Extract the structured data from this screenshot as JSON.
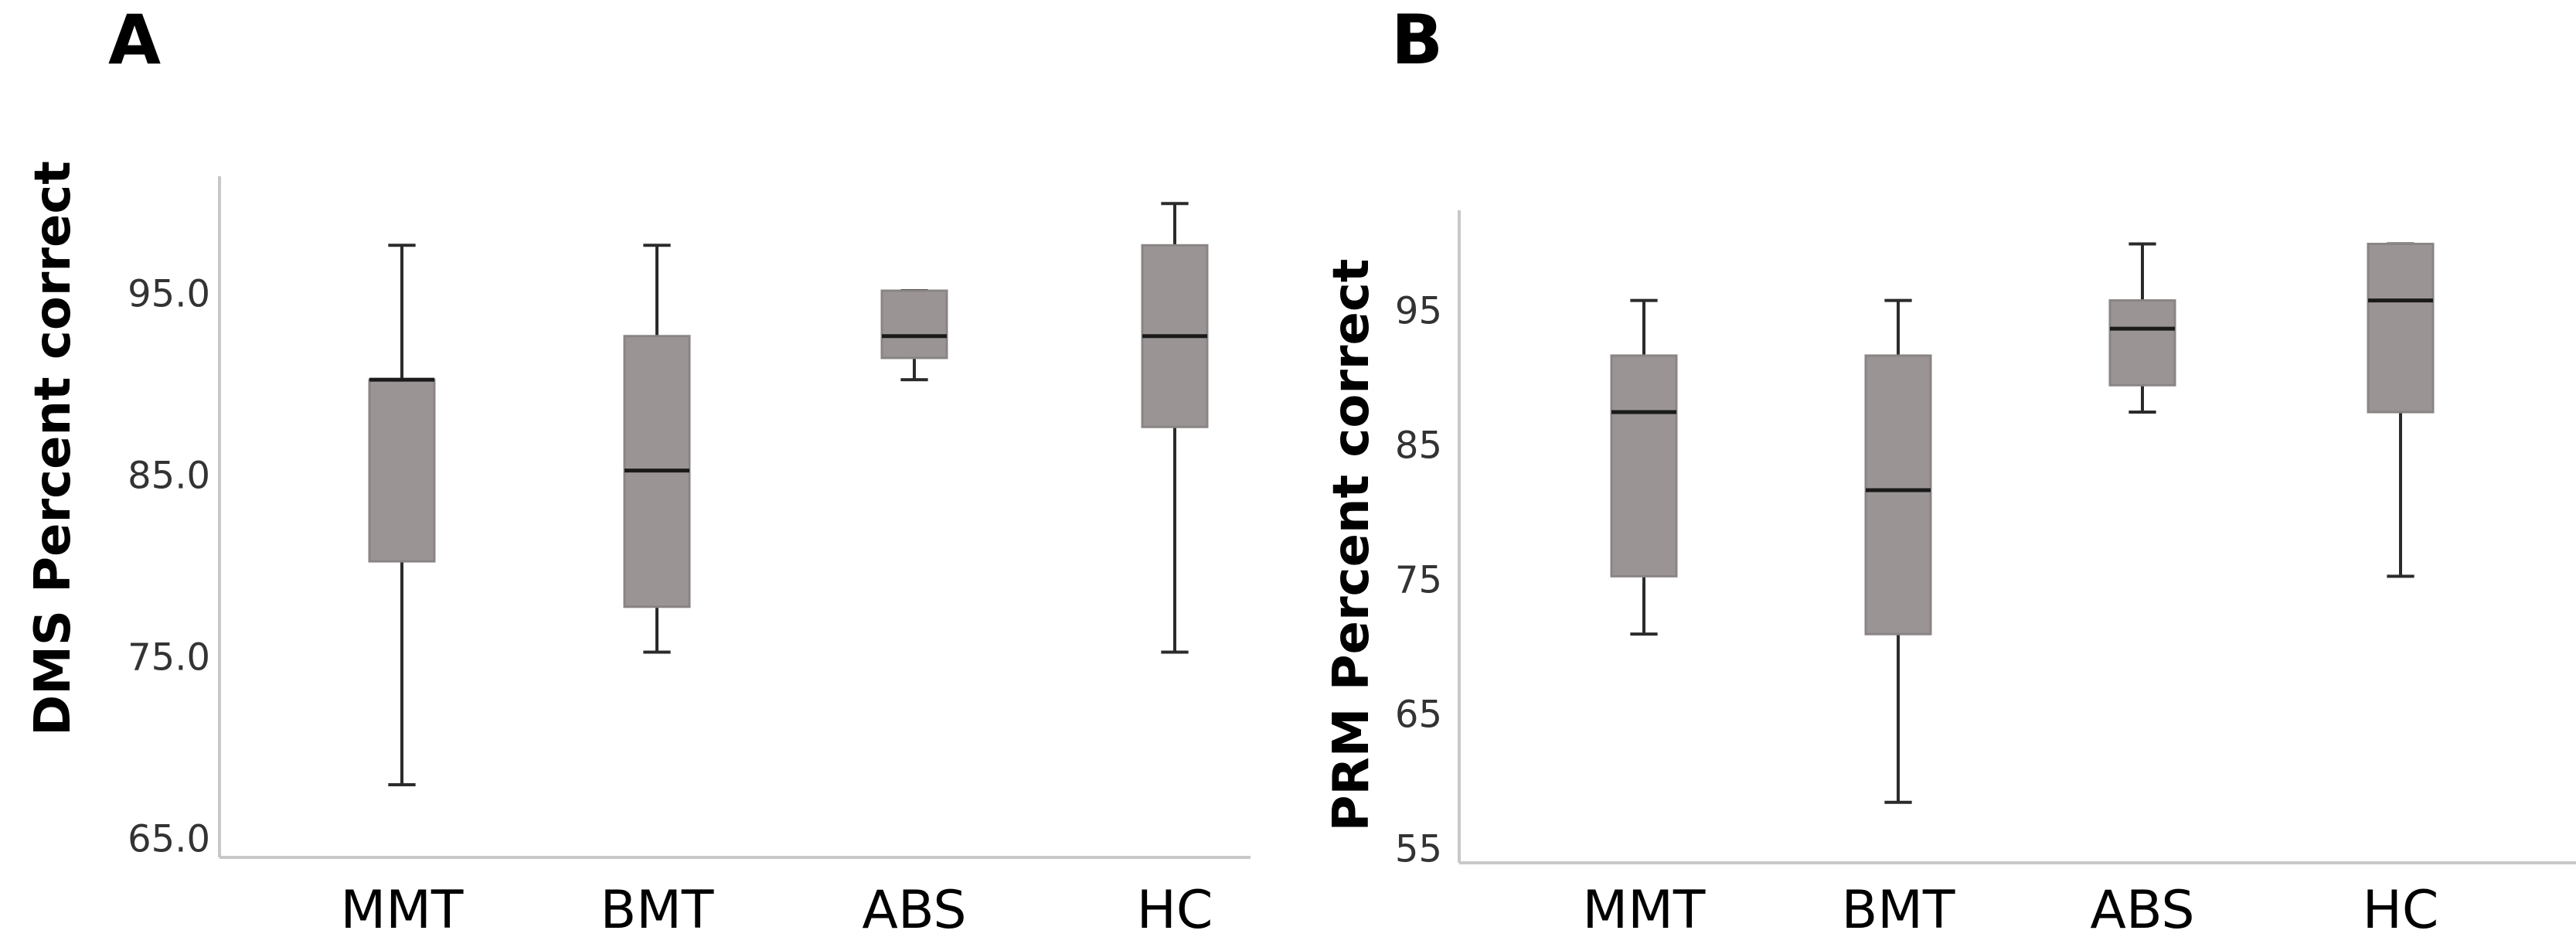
{
  "chart_data": [
    {
      "panel_label": "A",
      "type": "boxplot",
      "ylabel": "DMS Percent correct",
      "ylim": [
        64.0,
        101.5
      ],
      "yticks": [
        65.0,
        75.0,
        85.0,
        95.0
      ],
      "ytick_labels": [
        "65.0",
        "75.0",
        "85.0",
        "95.0"
      ],
      "categories": [
        "MMT",
        "BMT",
        "ABS",
        "HC"
      ],
      "boxes": [
        {
          "min": 68.0,
          "q1": 80.3,
          "median": 90.3,
          "q3": 90.3,
          "max": 97.7
        },
        {
          "min": 75.3,
          "q1": 77.8,
          "median": 85.3,
          "q3": 92.7,
          "max": 97.7
        },
        {
          "min": 90.3,
          "q1": 91.5,
          "median": 92.7,
          "q3": 95.2,
          "max": 95.2
        },
        {
          "min": 75.3,
          "q1": 87.7,
          "median": 92.7,
          "q3": 97.7,
          "max": 100.0
        }
      ],
      "grid": false,
      "legend": "none"
    },
    {
      "panel_label": "B",
      "type": "boxplot",
      "ylabel": "PRM Percent correct",
      "ylim": [
        54.0,
        102.5
      ],
      "yticks": [
        55,
        65,
        75,
        85,
        95
      ],
      "ytick_labels": [
        "55",
        "65",
        "75",
        "85",
        "95"
      ],
      "categories": [
        "MMT",
        "BMT",
        "ABS",
        "HC"
      ],
      "boxes": [
        {
          "min": 71.0,
          "q1": 75.3,
          "median": 87.5,
          "q3": 91.7,
          "max": 95.8
        },
        {
          "min": 58.5,
          "q1": 71.0,
          "median": 81.7,
          "q3": 91.7,
          "max": 95.8
        },
        {
          "min": 87.5,
          "q1": 89.5,
          "median": 93.7,
          "q3": 95.8,
          "max": 100.0
        },
        {
          "min": 75.3,
          "q1": 87.5,
          "median": 95.8,
          "q3": 100.0,
          "max": 100.0
        }
      ],
      "grid": false,
      "legend": "none"
    }
  ]
}
